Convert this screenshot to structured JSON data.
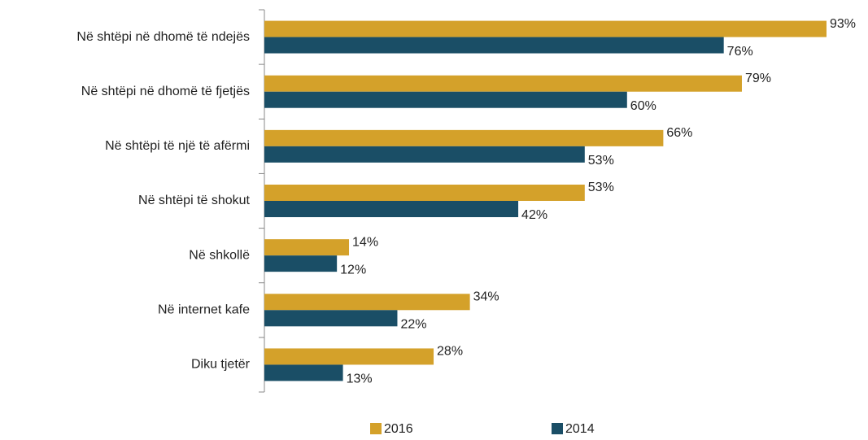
{
  "chart_data": {
    "type": "bar",
    "orientation": "horizontal",
    "categories": [
      "Në shtëpi në dhomë të ndejës",
      "Në shtëpi në dhomë të fjetjës",
      "Në shtëpi të një të afërmi",
      "Në shtëpi të shokut",
      "Në shkollë",
      "Në internet kafe",
      "Diku tjetër"
    ],
    "series": [
      {
        "name": "2016",
        "color": "#d4a12a",
        "values": [
          93,
          79,
          66,
          53,
          14,
          34,
          28
        ],
        "value_labels": [
          "93%",
          "79%",
          "66%",
          "53%",
          "14%",
          "34%",
          "28%"
        ]
      },
      {
        "name": "2014",
        "color": "#1a4e66",
        "values": [
          76,
          60,
          53,
          42,
          12,
          22,
          13
        ],
        "value_labels": [
          "76%",
          "60%",
          "53%",
          "42%",
          "12%",
          "22%",
          "13%"
        ]
      }
    ],
    "legend": "bottom"
  }
}
